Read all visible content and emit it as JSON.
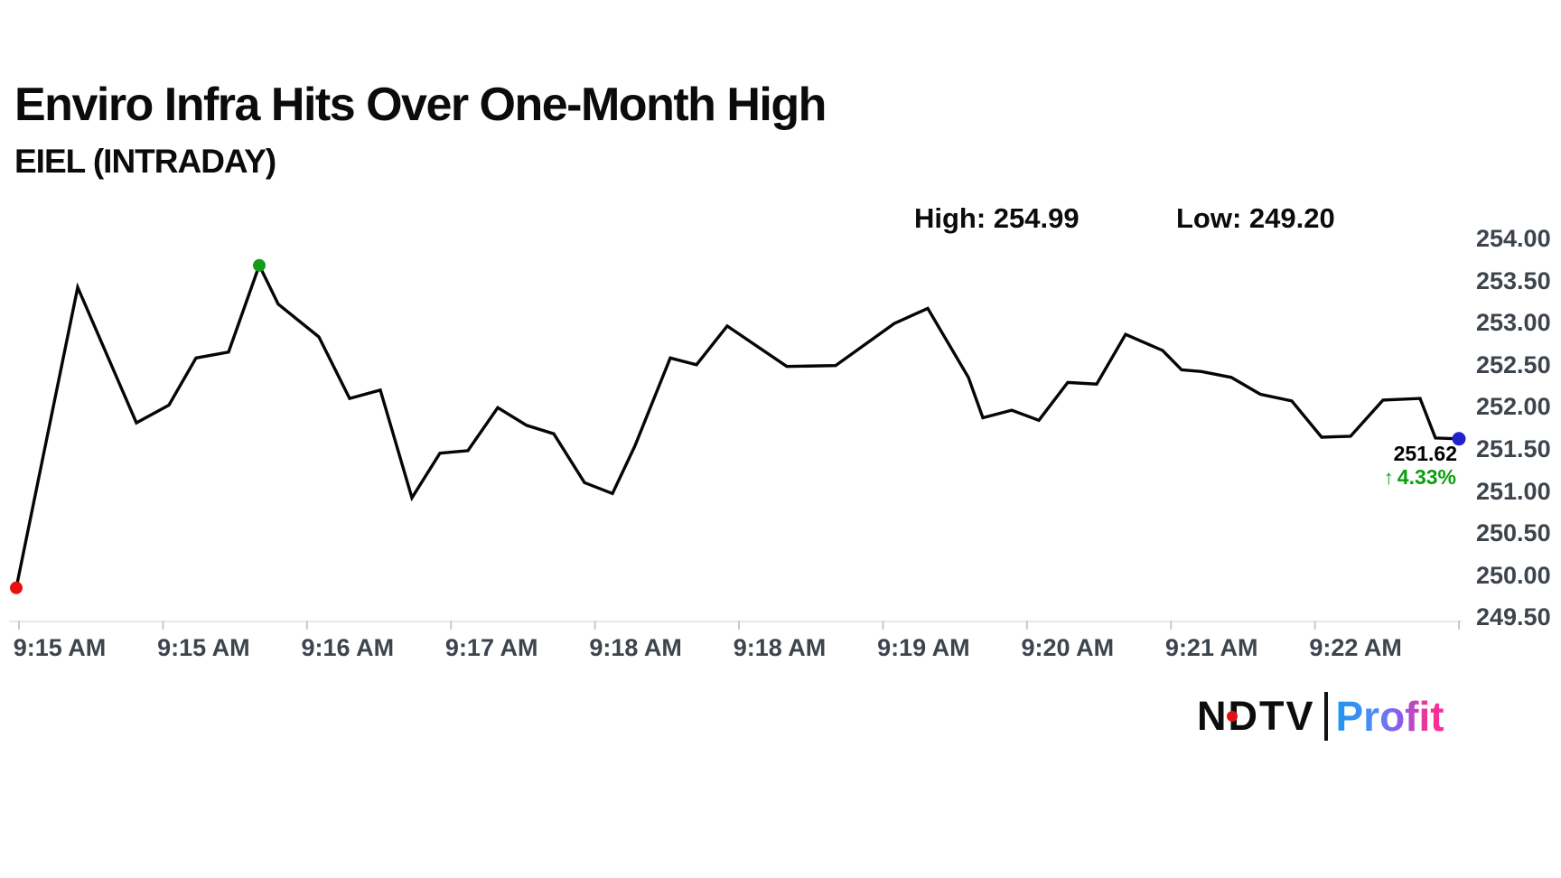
{
  "header": {
    "title": "Enviro Infra Hits Over One-Month High",
    "subtitle": "EIEL (INTRADAY)",
    "high_label": "High: 254.99",
    "low_label": "Low: 249.20"
  },
  "last_quote": {
    "price": "251.62",
    "arrow": "↑",
    "change_pct": "4.33%"
  },
  "logo": {
    "ndtv": "NDTV",
    "profit": "Profit"
  },
  "chart_data": {
    "type": "line",
    "symbol": "EIEL",
    "title": "Enviro Infra Hits Over One-Month High",
    "subtitle": "EIEL (INTRADAY)",
    "session_high": 254.99,
    "session_low": 249.2,
    "last_price": 251.62,
    "change_pct": 4.33,
    "ylim": [
      249.5,
      254.0
    ],
    "grid": false,
    "y_axis_side": "right",
    "y_tick_labels": [
      "254.00",
      "253.50",
      "253.00",
      "252.50",
      "252.00",
      "251.50",
      "251.00",
      "250.50",
      "250.00",
      "249.50"
    ],
    "x_tick_labels": [
      "9:15 AM",
      "9:15 AM",
      "9:16 AM",
      "9:17 AM",
      "9:18 AM",
      "9:18 AM",
      "9:19 AM",
      "9:20 AM",
      "9:21 AM",
      "9:22 AM"
    ],
    "points": [
      [
        18,
        249.85
      ],
      [
        86,
        253.42
      ],
      [
        151,
        251.81
      ],
      [
        187,
        252.02
      ],
      [
        217,
        252.58
      ],
      [
        253,
        252.65
      ],
      [
        287,
        253.68
      ],
      [
        308,
        253.22
      ],
      [
        353,
        252.83
      ],
      [
        387,
        252.1
      ],
      [
        421,
        252.2
      ],
      [
        456,
        250.92
      ],
      [
        487,
        251.45
      ],
      [
        518,
        251.48
      ],
      [
        551,
        251.99
      ],
      [
        583,
        251.78
      ],
      [
        613,
        251.68
      ],
      [
        647,
        251.1
      ],
      [
        678,
        250.97
      ],
      [
        703,
        251.54
      ],
      [
        742,
        252.58
      ],
      [
        771,
        252.5
      ],
      [
        805,
        252.96
      ],
      [
        871,
        252.48
      ],
      [
        925,
        252.49
      ],
      [
        990,
        252.99
      ],
      [
        1027,
        253.17
      ],
      [
        1072,
        252.35
      ],
      [
        1088,
        251.87
      ],
      [
        1120,
        251.96
      ],
      [
        1150,
        251.84
      ],
      [
        1182,
        252.29
      ],
      [
        1214,
        252.27
      ],
      [
        1246,
        252.86
      ],
      [
        1287,
        252.67
      ],
      [
        1308,
        252.44
      ],
      [
        1330,
        252.42
      ],
      [
        1363,
        252.35
      ],
      [
        1395,
        252.15
      ],
      [
        1430,
        252.07
      ],
      [
        1463,
        251.64
      ],
      [
        1495,
        251.65
      ],
      [
        1531,
        252.08
      ],
      [
        1572,
        252.1
      ],
      [
        1589,
        251.63
      ],
      [
        1615,
        251.62
      ]
    ],
    "marker_indices": {
      "start": 0,
      "high": 6,
      "last": 45
    },
    "colors": {
      "line": "#050505",
      "start_dot": "#e8100c",
      "high_dot": "#169b1c",
      "last_dot": "#2222cc",
      "change_text": "#0aa00d",
      "axis_text": "#3d444c",
      "axis_line": "#e8e8e8",
      "tick": "#c9c9c9"
    }
  }
}
